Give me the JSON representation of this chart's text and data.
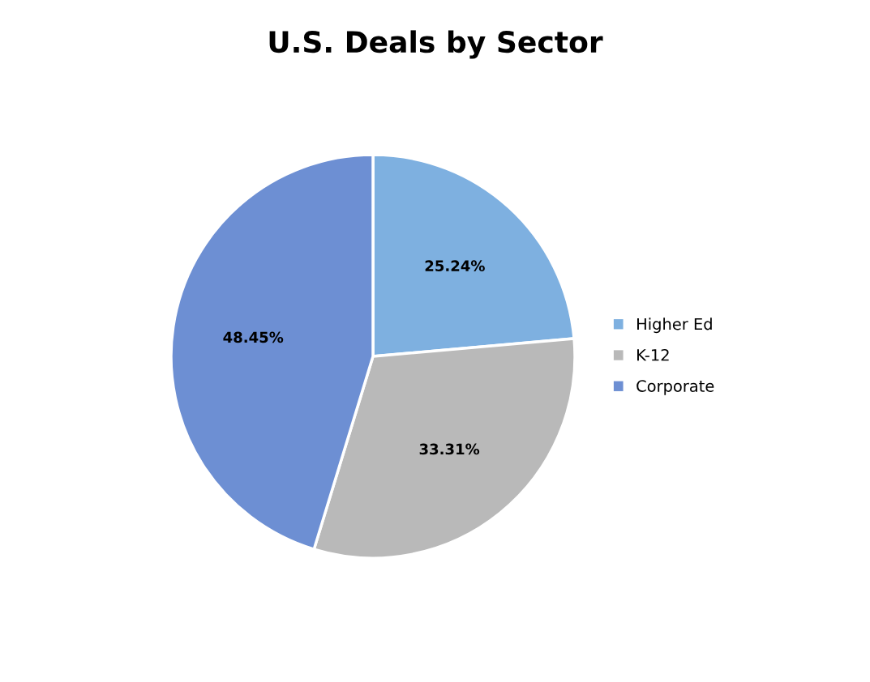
{
  "chart_data": {
    "type": "pie",
    "title": "U.S. Deals by Sector",
    "categories": [
      "Higher Ed",
      "K-12",
      "Corporate"
    ],
    "values": [
      25.24,
      33.31,
      48.45
    ],
    "colors": [
      "#7eb0e0",
      "#b9b9b9",
      "#6d8fd3"
    ],
    "value_labels": [
      "25.24%",
      "33.31%",
      "48.45%"
    ],
    "legend": "right"
  }
}
